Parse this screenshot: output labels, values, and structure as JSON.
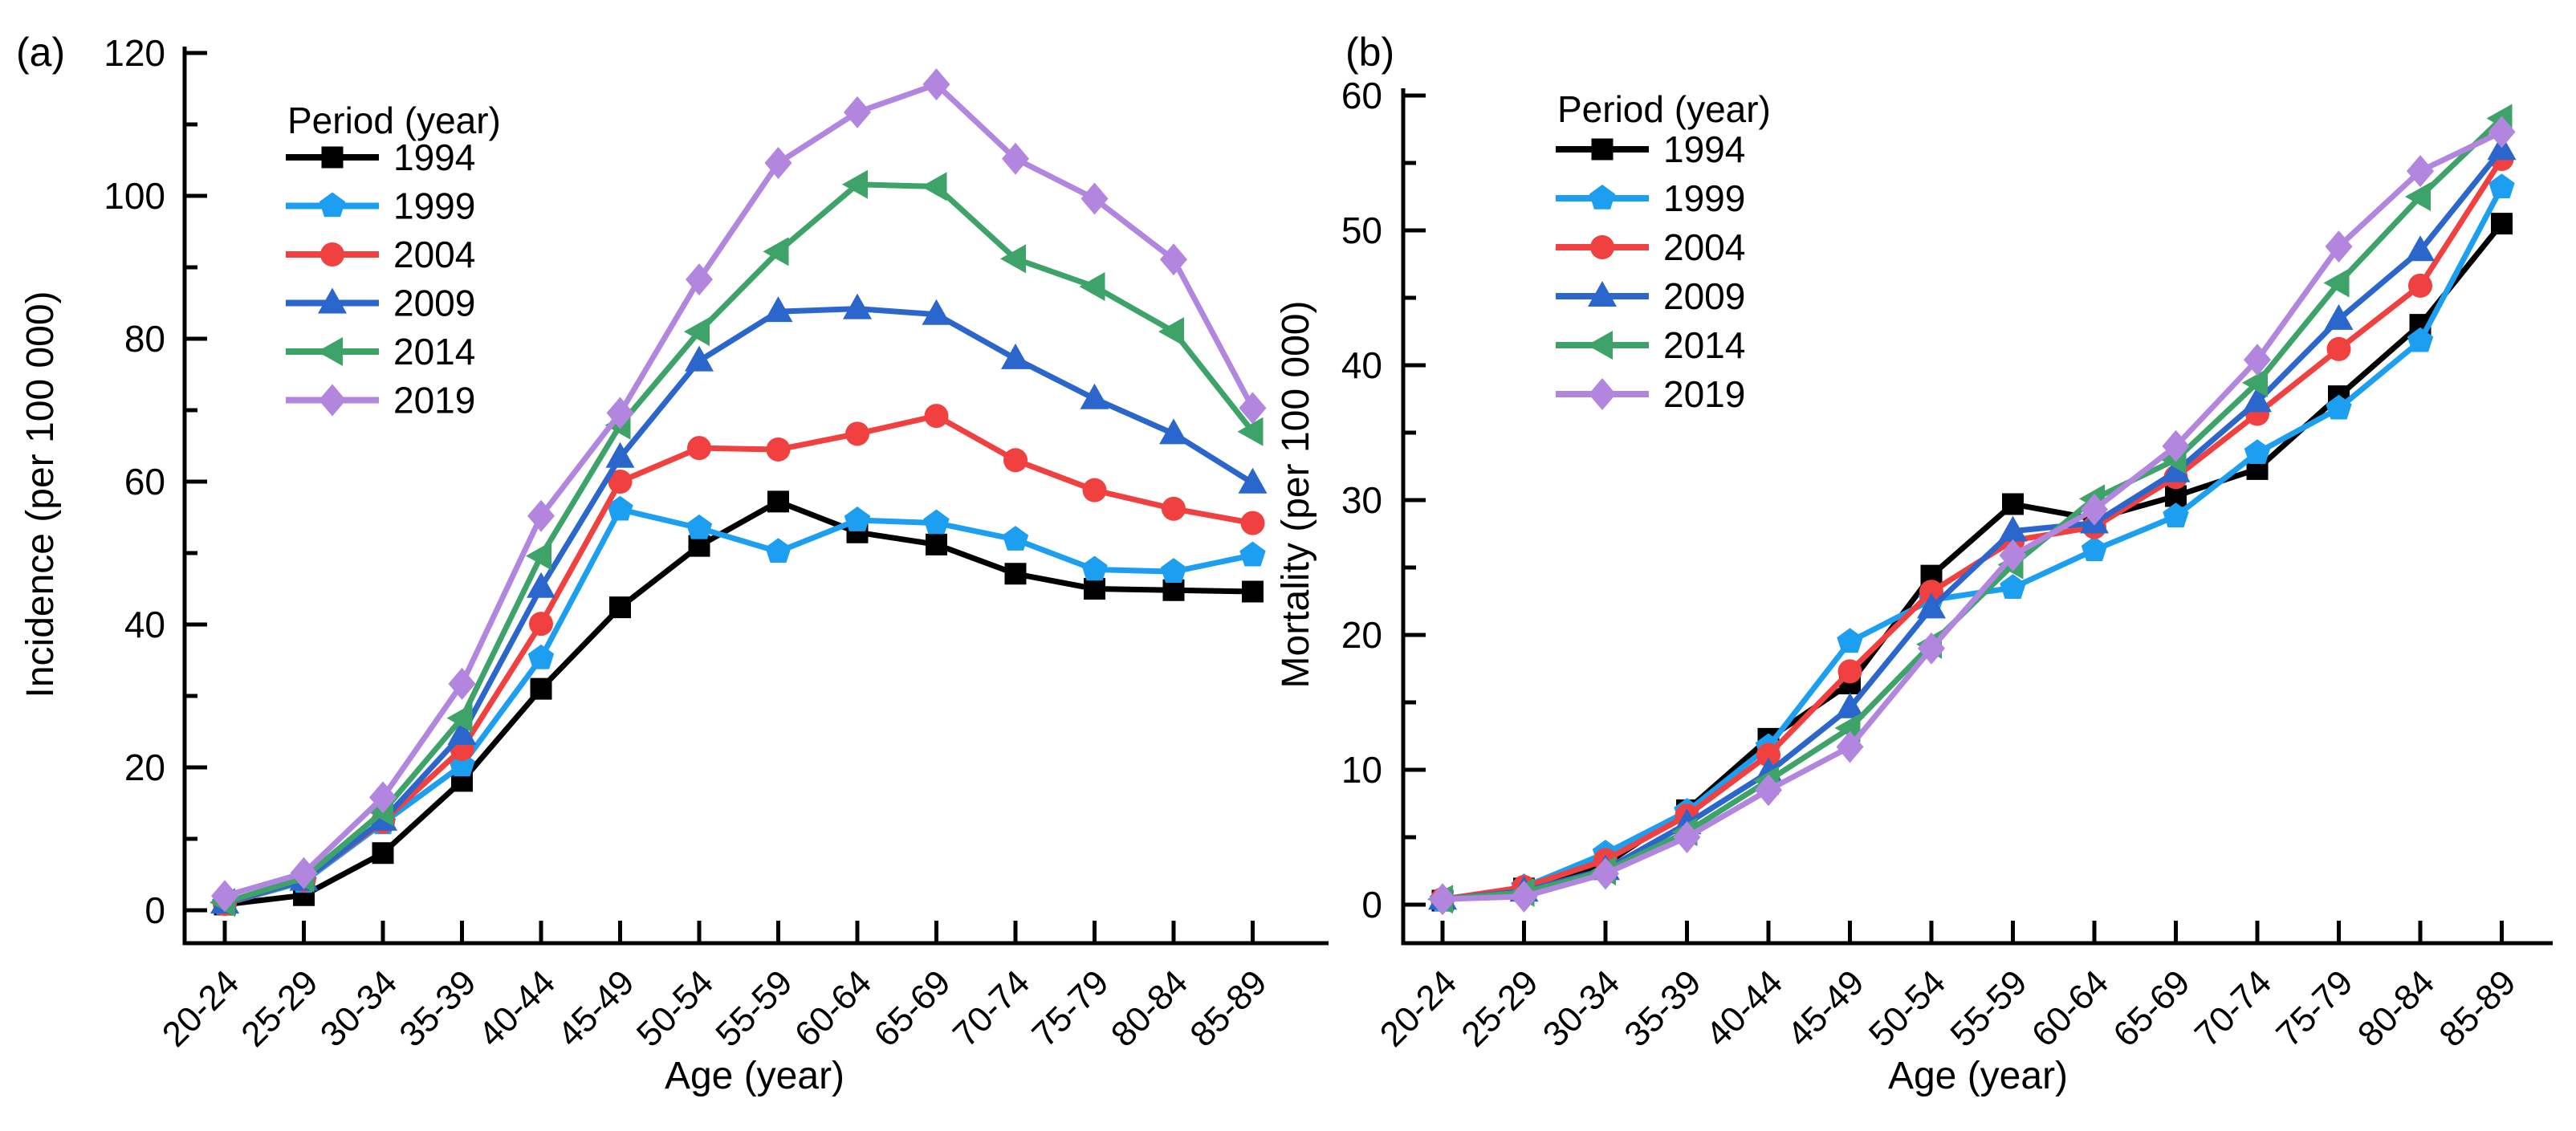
{
  "figure": {
    "background": "#ffffff",
    "legend_title": "Period (year)"
  },
  "chart_data": [
    {
      "type": "line",
      "panel_label": "(a)",
      "title": "",
      "xlabel": "Age (year)",
      "ylabel": "Incidence (per 100 000)",
      "ylim": [
        0,
        120
      ],
      "ytick_major_step": 20,
      "ytick_minor_step": 10,
      "grid": false,
      "legend_position": "upper-left-inside",
      "legend_title": "Period (year)",
      "categories": [
        "20-24",
        "25-29",
        "30-34",
        "35-39",
        "40-44",
        "45-49",
        "50-54",
        "55-59",
        "60-64",
        "65-69",
        "70-74",
        "75-79",
        "80-84",
        "85-89"
      ],
      "series": [
        {
          "name": "1994",
          "color": "#000000",
          "marker": "square",
          "values": [
            0.8,
            2.1,
            8.0,
            18.1,
            31.0,
            42.4,
            51.0,
            57.2,
            52.9,
            51.2,
            47.1,
            45.0,
            44.8,
            44.6
          ]
        },
        {
          "name": "1999",
          "color": "#1C9FF0",
          "marker": "pentagon",
          "values": [
            0.9,
            4.0,
            12.2,
            20.3,
            35.3,
            56.1,
            53.5,
            50.2,
            54.6,
            54.2,
            51.9,
            47.7,
            47.4,
            49.7
          ]
        },
        {
          "name": "2004",
          "color": "#F04040",
          "marker": "circle",
          "values": [
            0.9,
            4.2,
            12.4,
            22.6,
            40.1,
            60.0,
            64.7,
            64.5,
            66.7,
            69.2,
            63.0,
            58.8,
            56.2,
            54.2
          ]
        },
        {
          "name": "2009",
          "color": "#2B66CC",
          "marker": "triangle-up",
          "values": [
            1.0,
            4.2,
            12.6,
            24.6,
            45.2,
            63.4,
            76.9,
            83.8,
            84.2,
            83.4,
            77.2,
            71.6,
            66.7,
            59.8
          ]
        },
        {
          "name": "2014",
          "color": "#3DA368",
          "marker": "triangle-left",
          "values": [
            1.1,
            4.5,
            13.8,
            26.9,
            49.6,
            67.9,
            81.0,
            92.2,
            101.6,
            101.3,
            91.2,
            87.3,
            81.0,
            67.0
          ]
        },
        {
          "name": "2019",
          "color": "#B286DF",
          "marker": "diamond",
          "values": [
            2.0,
            5.2,
            15.8,
            31.7,
            55.2,
            69.6,
            88.3,
            104.6,
            111.7,
            115.6,
            105.2,
            99.6,
            91.1,
            70.3
          ]
        }
      ]
    },
    {
      "type": "line",
      "panel_label": "(b)",
      "title": "",
      "xlabel": "Age (year)",
      "ylabel": "Mortality (per 100 000)",
      "ylim": [
        0,
        60
      ],
      "ytick_major_step": 10,
      "ytick_minor_step": 5,
      "grid": false,
      "legend_position": "upper-left-inside",
      "legend_title": "Period (year)",
      "categories": [
        "20-24",
        "25-29",
        "30-34",
        "35-39",
        "40-44",
        "45-49",
        "50-54",
        "55-59",
        "60-64",
        "65-69",
        "70-74",
        "75-79",
        "80-84",
        "85-89"
      ],
      "series": [
        {
          "name": "1994",
          "color": "#000000",
          "marker": "square",
          "values": [
            0.3,
            1.2,
            3.0,
            7.0,
            12.3,
            16.4,
            24.4,
            29.7,
            28.6,
            30.3,
            32.3,
            37.7,
            43.0,
            50.5
          ]
        },
        {
          "name": "1999",
          "color": "#1C9FF0",
          "marker": "pentagon",
          "values": [
            0.3,
            1.3,
            3.8,
            6.9,
            11.7,
            19.5,
            22.6,
            23.5,
            26.3,
            28.8,
            33.5,
            36.8,
            41.8,
            53.2
          ]
        },
        {
          "name": "2004",
          "color": "#F04040",
          "marker": "circle",
          "values": [
            0.4,
            1.3,
            3.3,
            6.6,
            11.1,
            17.3,
            23.2,
            27.0,
            28.0,
            31.7,
            36.4,
            41.2,
            45.9,
            55.3
          ]
        },
        {
          "name": "2009",
          "color": "#2B66CC",
          "marker": "triangle-up",
          "values": [
            0.4,
            1.0,
            2.6,
            6.0,
            9.8,
            14.6,
            22.0,
            27.7,
            28.3,
            32.1,
            37.3,
            43.4,
            48.5,
            56.0
          ]
        },
        {
          "name": "2014",
          "color": "#3DA368",
          "marker": "triangle-left",
          "values": [
            0.4,
            0.9,
            2.5,
            5.4,
            9.2,
            13.1,
            19.3,
            25.2,
            30.1,
            33.0,
            38.7,
            46.1,
            52.5,
            58.3
          ]
        },
        {
          "name": "2019",
          "color": "#B286DF",
          "marker": "diamond",
          "values": [
            0.4,
            0.6,
            2.3,
            5.0,
            8.5,
            11.7,
            19.0,
            25.9,
            29.3,
            34.0,
            40.4,
            48.8,
            54.4,
            57.3
          ]
        }
      ]
    }
  ]
}
